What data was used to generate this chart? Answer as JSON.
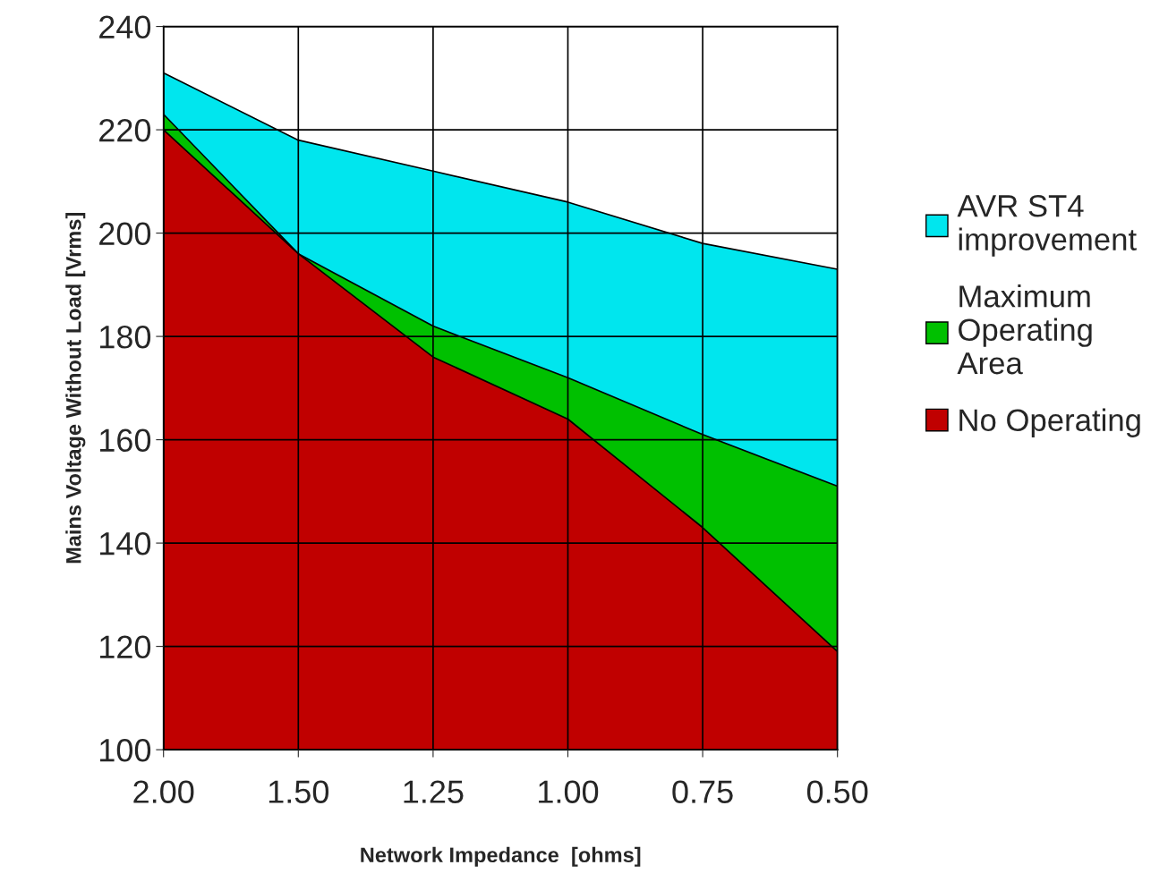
{
  "chart_data": {
    "type": "area",
    "xlabel": "Network Impedance  [ohms]",
    "ylabel": "Mains Voltage Without Load [Vrms]",
    "categories": [
      "2.00",
      "1.50",
      "1.25",
      "1.00",
      "0.75",
      "0.50"
    ],
    "series": [
      {
        "name": "AVR ST4\nimprovement",
        "color": "#00e6ee",
        "values": [
          231,
          218,
          212,
          206,
          198,
          193
        ]
      },
      {
        "name": "Maximum\nOperating\nArea",
        "color": "#00c000",
        "values": [
          223,
          196,
          182,
          172,
          161,
          151
        ]
      },
      {
        "name": "No Operating",
        "color": "#c00000",
        "values": [
          220,
          196,
          176,
          164,
          143,
          119
        ]
      }
    ],
    "ylim": [
      100,
      240
    ],
    "yticks": [
      100,
      120,
      140,
      160,
      180,
      200,
      220,
      240
    ],
    "grid": true,
    "legend": "right"
  }
}
